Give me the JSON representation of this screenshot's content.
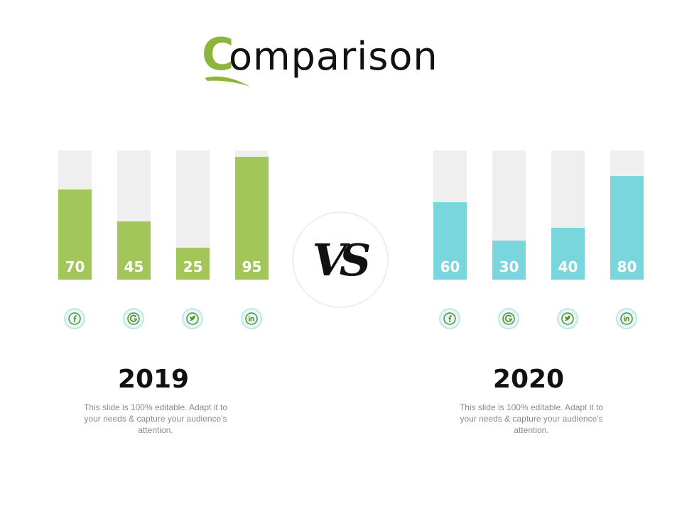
{
  "title": {
    "first_letter": "C",
    "rest": "omparison"
  },
  "colors": {
    "accent_green": "#a2c65a",
    "accent_teal": "#79d6dc",
    "track": "#efefef"
  },
  "vs_label": "VS",
  "icons": [
    "facebook-icon",
    "google-icon",
    "twitter-icon",
    "linkedin-icon"
  ],
  "chart_data": [
    {
      "type": "bar",
      "title": "2019",
      "categories": [
        "facebook",
        "google",
        "twitter",
        "linkedin"
      ],
      "values": [
        70,
        45,
        25,
        95
      ],
      "ylim": [
        0,
        100
      ],
      "color": "#a2c65a"
    },
    {
      "type": "bar",
      "title": "2020",
      "categories": [
        "facebook",
        "google",
        "twitter",
        "linkedin"
      ],
      "values": [
        60,
        30,
        40,
        80
      ],
      "ylim": [
        0,
        100
      ],
      "color": "#79d6dc"
    }
  ],
  "panels": [
    {
      "year": "2019",
      "description": "This slide is 100% editable. Adapt it to your needs & capture your audience's attention."
    },
    {
      "year": "2020",
      "description": "This slide is 100% editable. Adapt it to your needs & capture your audience's attention."
    }
  ]
}
